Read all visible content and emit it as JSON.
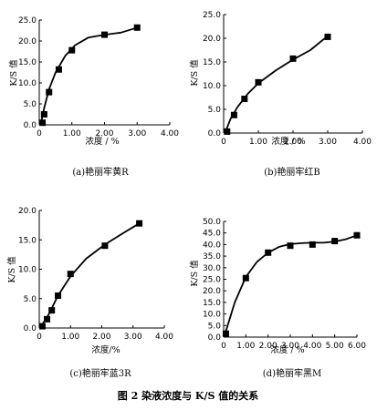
{
  "figure_title": "图 2   染液浓度与 K/S 值的关系",
  "chart_data": [
    {
      "type": "line",
      "caption": "(a)艳丽牢黄R",
      "xlabel": "浓度 / %",
      "ylabel": "K/S 值",
      "xlim": [
        0,
        4
      ],
      "ylim": [
        0,
        25
      ],
      "x_ticks": [
        "0",
        "1.00",
        "2.00",
        "3.00",
        "4.00"
      ],
      "y_ticks": [
        "0.0",
        "5.0",
        "10.0",
        "15.0",
        "20.0",
        "25.0"
      ],
      "series": [
        {
          "markers": [
            [
              0.1,
              0.5
            ],
            [
              0.15,
              2.5
            ],
            [
              0.3,
              7.8
            ],
            [
              0.6,
              13.2
            ],
            [
              1.0,
              17.8
            ],
            [
              2.0,
              21.5
            ],
            [
              3.0,
              23.2
            ]
          ],
          "curve": [
            [
              0.05,
              0.3
            ],
            [
              0.15,
              4.0
            ],
            [
              0.3,
              8.5
            ],
            [
              0.5,
              12.5
            ],
            [
              0.8,
              16.5
            ],
            [
              1.1,
              19.0
            ],
            [
              1.5,
              20.8
            ],
            [
              2.0,
              21.5
            ],
            [
              2.5,
              22.0
            ],
            [
              3.0,
              23.2
            ]
          ]
        }
      ]
    },
    {
      "type": "line",
      "caption": "(b)艳丽牢红B",
      "xlabel": "浓度 / %",
      "ylabel": "K/S 值",
      "xlim": [
        0,
        4
      ],
      "ylim": [
        0,
        25
      ],
      "x_ticks": [
        "0",
        "1.00",
        "2.00",
        "3.00",
        "4.00"
      ],
      "y_ticks": [
        "0.0",
        "5.0",
        "10.0",
        "15.0",
        "20.0",
        "25.0"
      ],
      "series": [
        {
          "markers": [
            [
              0.1,
              0.3
            ],
            [
              0.3,
              3.8
            ],
            [
              0.6,
              7.2
            ],
            [
              1.0,
              10.7
            ],
            [
              2.0,
              15.7
            ],
            [
              3.0,
              20.3
            ]
          ],
          "curve": [
            [
              0.05,
              0.2
            ],
            [
              0.2,
              3.0
            ],
            [
              0.4,
              5.5
            ],
            [
              0.7,
              8.3
            ],
            [
              1.0,
              10.5
            ],
            [
              1.5,
              13.2
            ],
            [
              2.0,
              15.5
            ],
            [
              2.5,
              17.5
            ],
            [
              3.0,
              20.5
            ]
          ]
        }
      ]
    },
    {
      "type": "line",
      "caption": "(c)艳丽牢蓝3R",
      "xlabel": "浓度/%",
      "ylabel": "K/S 值",
      "xlim": [
        0,
        4
      ],
      "ylim": [
        0,
        20
      ],
      "x_ticks": [
        "0",
        "1.00",
        "2.00",
        "3.00",
        "4.00"
      ],
      "y_ticks": [
        "0.0",
        "5.0",
        "10.0",
        "15.0",
        "20.0"
      ],
      "series": [
        {
          "markers": [
            [
              0.1,
              0.3
            ],
            [
              0.25,
              1.5
            ],
            [
              0.4,
              3.0
            ],
            [
              0.6,
              5.5
            ],
            [
              1.0,
              9.2
            ],
            [
              2.1,
              14.0
            ],
            [
              3.2,
              17.8
            ]
          ],
          "curve": [
            [
              0.05,
              0.2
            ],
            [
              0.3,
              2.3
            ],
            [
              0.6,
              5.5
            ],
            [
              1.0,
              8.8
            ],
            [
              1.5,
              11.8
            ],
            [
              2.1,
              14.2
            ],
            [
              2.7,
              16.2
            ],
            [
              3.2,
              17.8
            ]
          ]
        }
      ]
    },
    {
      "type": "line",
      "caption": "(d)艳丽牢黑M",
      "xlabel": "浓度 / %",
      "ylabel": "K/S 值",
      "xlim": [
        0,
        6
      ],
      "ylim": [
        0,
        50
      ],
      "x_ticks": [
        "0",
        "1.00",
        "2.00",
        "3.00",
        "4.00",
        "5.00",
        "6.00"
      ],
      "y_ticks": [
        "0.0",
        "5.0",
        "10.0",
        "15.0",
        "20.0",
        "25.0",
        "30.0",
        "35.0",
        "40.0",
        "45.0",
        "50.0"
      ],
      "series": [
        {
          "markers": [
            [
              0.1,
              1.5
            ],
            [
              1.0,
              25.5
            ],
            [
              2.0,
              36.5
            ],
            [
              3.0,
              39.5
            ],
            [
              4.0,
              40.0
            ],
            [
              5.0,
              41.5
            ],
            [
              6.0,
              44.0
            ]
          ],
          "curve": [
            [
              0.05,
              1.0
            ],
            [
              0.5,
              15.0
            ],
            [
              1.0,
              26.0
            ],
            [
              1.5,
              32.5
            ],
            [
              2.0,
              36.5
            ],
            [
              2.5,
              39.0
            ],
            [
              3.0,
              40.2
            ],
            [
              3.5,
              40.6
            ],
            [
              4.0,
              40.8
            ],
            [
              4.5,
              40.8
            ],
            [
              5.0,
              41.3
            ],
            [
              5.5,
              42.3
            ],
            [
              6.0,
              44.0
            ]
          ]
        }
      ]
    }
  ]
}
